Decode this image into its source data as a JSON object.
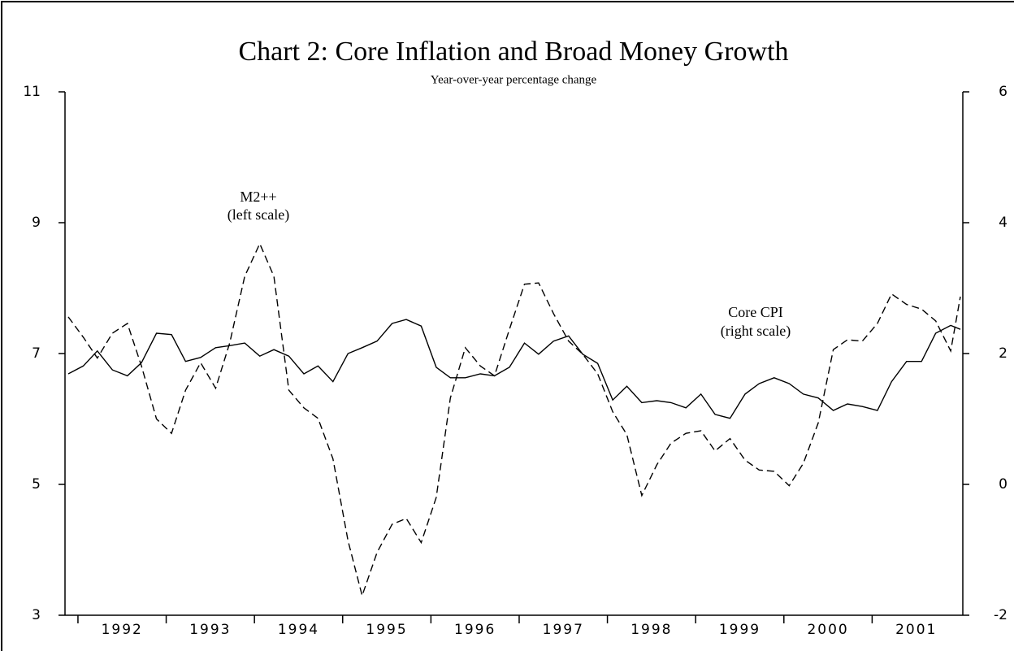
{
  "chart_data": {
    "type": "line",
    "title": "Chart 2: Core Inflation and Broad Money Growth",
    "subtitle": "Year-over-year percentage change",
    "annotations": [
      "M2++",
      "(left scale)",
      "Core CPI",
      "(right scale)"
    ],
    "x": [
      1991.89,
      1992.06,
      1992.22,
      1992.39,
      1992.56,
      1992.72,
      1992.89,
      1993.06,
      1993.22,
      1993.39,
      1993.56,
      1993.72,
      1993.89,
      1994.06,
      1994.22,
      1994.39,
      1994.56,
      1994.72,
      1994.89,
      1995.06,
      1995.22,
      1995.39,
      1995.56,
      1995.72,
      1995.89,
      1996.06,
      1996.22,
      1996.39,
      1996.56,
      1996.72,
      1996.89,
      1997.06,
      1997.22,
      1997.39,
      1997.56,
      1997.72,
      1997.89,
      1998.06,
      1998.22,
      1998.39,
      1998.56,
      1998.72,
      1998.89,
      1999.06,
      1999.22,
      1999.39,
      1999.56,
      1999.72,
      1999.89,
      2000.06,
      2000.22,
      2000.39,
      2000.56,
      2000.72,
      2000.89,
      2001.06,
      2001.22,
      2001.39,
      2001.56,
      2001.72,
      2001.89,
      2002.0
    ],
    "xlim": [
      1991.89,
      2002.0
    ],
    "xticks": [
      1992,
      1993,
      1994,
      1995,
      1996,
      1997,
      1998,
      1999,
      2000,
      2001
    ],
    "ylim": [
      3,
      11
    ],
    "yticks": [
      3,
      5,
      7,
      9,
      11
    ],
    "y2lim": [
      -2,
      6
    ],
    "y2ticks": [
      -2,
      0,
      2,
      4,
      6
    ],
    "series": [
      {
        "name": "M2++",
        "color": "#000000",
        "dash": true,
        "values": [
          7.56,
          7.25,
          6.93,
          7.31,
          7.46,
          6.81,
          6.0,
          5.78,
          6.44,
          6.86,
          6.47,
          7.16,
          8.18,
          8.68,
          8.18,
          6.44,
          6.17,
          6.01,
          5.39,
          4.14,
          3.3,
          3.96,
          4.39,
          4.48,
          4.11,
          4.8,
          6.32,
          7.09,
          6.81,
          6.66,
          7.37,
          8.06,
          8.08,
          7.61,
          7.19,
          6.99,
          6.69,
          6.11,
          5.76,
          4.83,
          5.3,
          5.63,
          5.78,
          5.82,
          5.51,
          5.7,
          5.37,
          5.22,
          5.2,
          4.98,
          5.32,
          5.94,
          7.06,
          7.21,
          7.19,
          7.46,
          7.91,
          7.75,
          7.68,
          7.5,
          7.04,
          7.87
        ]
      },
      {
        "name": "Core CPI",
        "color": "#000000",
        "dash": false,
        "axis": "y2",
        "values": [
          1.69,
          1.81,
          2.04,
          1.75,
          1.66,
          1.86,
          2.31,
          2.29,
          1.88,
          1.94,
          2.09,
          2.12,
          2.16,
          1.96,
          2.06,
          1.96,
          1.69,
          1.81,
          1.57,
          2.0,
          2.09,
          2.19,
          2.46,
          2.52,
          2.42,
          1.79,
          1.63,
          1.63,
          1.69,
          1.66,
          1.79,
          2.16,
          1.99,
          2.19,
          2.27,
          1.99,
          1.85,
          1.29,
          1.5,
          1.25,
          1.28,
          1.25,
          1.17,
          1.38,
          1.07,
          1.01,
          1.38,
          1.54,
          1.63,
          1.54,
          1.38,
          1.32,
          1.13,
          1.23,
          1.19,
          1.13,
          1.57,
          1.88,
          1.88,
          2.31,
          2.43,
          2.37
        ]
      }
    ]
  }
}
